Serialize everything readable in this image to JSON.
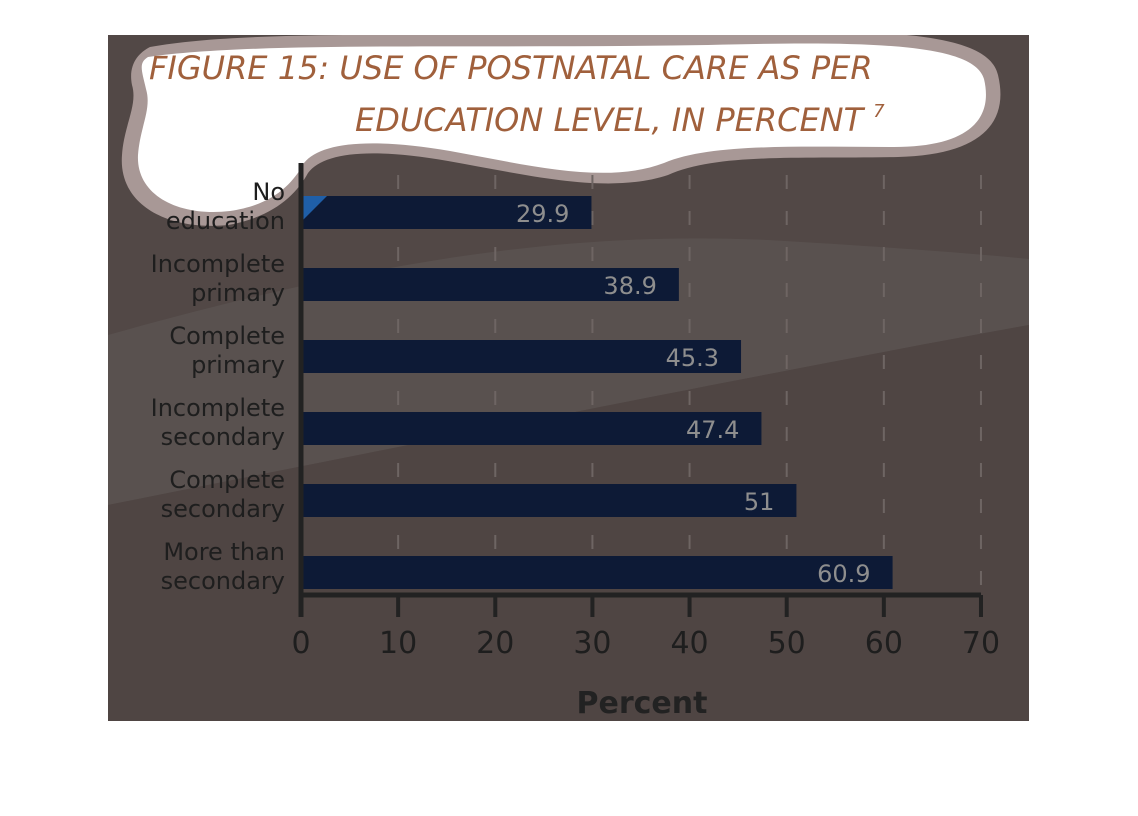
{
  "chart_data": {
    "type": "bar",
    "orientation": "horizontal",
    "title_line1": "FIGURE 15: USE OF POSTNATAL CARE AS PER",
    "title_line2": "EDUCATION LEVEL, IN PERCENT",
    "title_footnote": "7",
    "categories": [
      [
        "No",
        "education"
      ],
      [
        "Incomplete",
        "primary"
      ],
      [
        "Complete",
        "primary"
      ],
      [
        "Incomplete",
        "secondary"
      ],
      [
        "Complete",
        "secondary"
      ],
      [
        "More than",
        "secondary"
      ]
    ],
    "values": [
      29.9,
      38.9,
      45.3,
      47.4,
      51,
      60.9
    ],
    "value_labels": [
      "29.9",
      "38.9",
      "45.3",
      "47.4",
      "51",
      "60.9"
    ],
    "xlabel": "Percent",
    "xlim": [
      0,
      70
    ],
    "xticks": [
      0,
      10,
      20,
      30,
      40,
      50,
      60,
      70
    ],
    "grid": "vertical dashed",
    "legend": "none",
    "colors": {
      "background": "#524846",
      "bar": "#0d1a36",
      "title": "#a0603c",
      "cloud_fill": "#ffffff",
      "cloud_border": "#a89896",
      "axis": "#222222",
      "value_label": "#8e8e8e"
    }
  }
}
